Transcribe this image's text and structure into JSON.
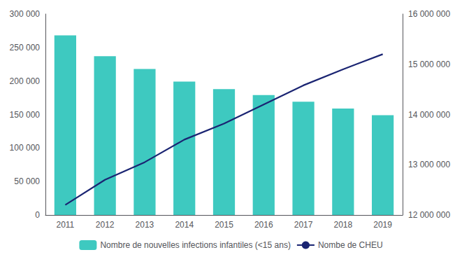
{
  "chart_data": {
    "type": "bar",
    "categories": [
      "2011",
      "2012",
      "2013",
      "2014",
      "2015",
      "2016",
      "2017",
      "2018",
      "2019"
    ],
    "series": [
      {
        "name": "Nombre de nouvelles infections infantiles (<15 ans)",
        "type": "bar",
        "color": "#3ec9c0",
        "values": [
          268000,
          237000,
          218000,
          199000,
          188000,
          179000,
          169000,
          159000,
          149000
        ]
      },
      {
        "name": "Nombe de CHEU",
        "type": "line",
        "color": "#1a2472",
        "axis": "y2",
        "values": [
          12200000,
          12700000,
          13050000,
          13500000,
          13820000,
          14200000,
          14580000,
          14900000,
          15200000
        ]
      }
    ],
    "ylim": [
      0,
      300000
    ],
    "yticks": [
      0,
      {
        "value": 50000,
        "label": "50 000"
      },
      {
        "value": 100000,
        "label": "100 000"
      },
      {
        "value": 150000,
        "label": "150 000"
      },
      {
        "value": 200000,
        "label": "200 000"
      },
      {
        "value": 250000,
        "label": "250 000"
      },
      {
        "value": 300000,
        "label": "300 000"
      }
    ],
    "y2lim": [
      12000000,
      16000000
    ],
    "y2ticks": [
      {
        "value": 12000000,
        "label": "12 000 000"
      },
      {
        "value": 13000000,
        "label": "13 000 000"
      },
      {
        "value": 14000000,
        "label": "14 000 000"
      },
      {
        "value": 15000000,
        "label": "15 000 000"
      },
      {
        "value": 16000000,
        "label": "16 000 000"
      }
    ],
    "grid": false,
    "legend": "bottom"
  }
}
